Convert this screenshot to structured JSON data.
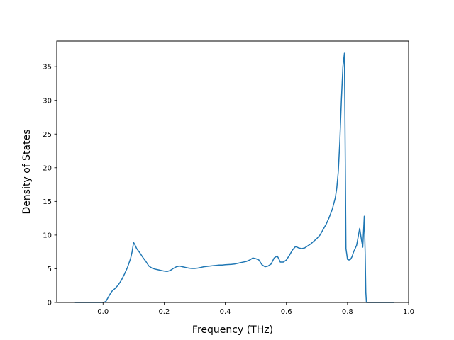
{
  "chart_data": {
    "type": "line",
    "title": "",
    "xlabel": "Frequency (THz)",
    "ylabel": "Density of States",
    "xlim": [
      -0.1515,
      1.0
    ],
    "ylim": [
      0,
      38.8
    ],
    "grid": false,
    "xticks": [
      {
        "value": 0.0,
        "label": "0.0"
      },
      {
        "value": 0.2,
        "label": "0.2"
      },
      {
        "value": 0.4,
        "label": "0.4"
      },
      {
        "value": 0.6,
        "label": "0.6"
      },
      {
        "value": 0.8,
        "label": "0.8"
      },
      {
        "value": 1.0,
        "label": "1.0"
      }
    ],
    "yticks": [
      {
        "value": 0,
        "label": "0"
      },
      {
        "value": 5,
        "label": "5"
      },
      {
        "value": 10,
        "label": "10"
      },
      {
        "value": 15,
        "label": "15"
      },
      {
        "value": 20,
        "label": "20"
      },
      {
        "value": 25,
        "label": "25"
      },
      {
        "value": 30,
        "label": "30"
      },
      {
        "value": 35,
        "label": "35"
      }
    ],
    "series": [
      {
        "color": "#1f77b4",
        "x": [
          -0.09,
          -0.06,
          -0.03,
          0.0,
          0.005,
          0.01,
          0.015,
          0.02,
          0.025,
          0.03,
          0.04,
          0.05,
          0.06,
          0.07,
          0.08,
          0.09,
          0.095,
          0.1,
          0.105,
          0.11,
          0.12,
          0.13,
          0.14,
          0.15,
          0.16,
          0.17,
          0.18,
          0.19,
          0.2,
          0.21,
          0.22,
          0.23,
          0.24,
          0.25,
          0.26,
          0.27,
          0.28,
          0.29,
          0.3,
          0.31,
          0.32,
          0.33,
          0.34,
          0.35,
          0.36,
          0.37,
          0.38,
          0.39,
          0.4,
          0.41,
          0.42,
          0.43,
          0.44,
          0.45,
          0.46,
          0.47,
          0.48,
          0.49,
          0.5,
          0.51,
          0.52,
          0.53,
          0.54,
          0.55,
          0.56,
          0.57,
          0.575,
          0.58,
          0.59,
          0.6,
          0.61,
          0.62,
          0.63,
          0.64,
          0.65,
          0.66,
          0.67,
          0.68,
          0.69,
          0.7,
          0.71,
          0.72,
          0.73,
          0.74,
          0.75,
          0.76,
          0.765,
          0.77,
          0.775,
          0.78,
          0.785,
          0.79,
          0.795,
          0.8,
          0.805,
          0.81,
          0.815,
          0.82,
          0.83,
          0.84,
          0.845,
          0.85,
          0.855,
          0.858,
          0.86,
          0.862,
          0.864,
          0.87,
          0.9,
          0.95
        ],
        "y": [
          0,
          0,
          0,
          0,
          0.05,
          0.2,
          0.6,
          1.0,
          1.4,
          1.7,
          2.1,
          2.6,
          3.3,
          4.2,
          5.2,
          6.5,
          7.5,
          8.9,
          8.5,
          8.0,
          7.4,
          6.7,
          6.1,
          5.4,
          5.1,
          4.95,
          4.85,
          4.75,
          4.65,
          4.6,
          4.75,
          5.05,
          5.3,
          5.4,
          5.3,
          5.2,
          5.1,
          5.05,
          5.05,
          5.1,
          5.2,
          5.3,
          5.35,
          5.4,
          5.45,
          5.5,
          5.55,
          5.55,
          5.6,
          5.62,
          5.65,
          5.7,
          5.8,
          5.9,
          6.0,
          6.1,
          6.3,
          6.6,
          6.5,
          6.3,
          5.6,
          5.3,
          5.4,
          5.7,
          6.6,
          6.9,
          6.5,
          6.0,
          6.0,
          6.3,
          7.0,
          7.8,
          8.3,
          8.1,
          8.0,
          8.1,
          8.4,
          8.7,
          9.1,
          9.5,
          10.0,
          10.8,
          11.6,
          12.6,
          13.8,
          15.5,
          17.0,
          19.5,
          24.0,
          30.0,
          35.0,
          37.0,
          8.0,
          6.4,
          6.3,
          6.4,
          6.8,
          7.5,
          8.5,
          11.0,
          9.5,
          8.2,
          12.8,
          7.0,
          1.5,
          0,
          0,
          0,
          0,
          0
        ]
      }
    ]
  }
}
